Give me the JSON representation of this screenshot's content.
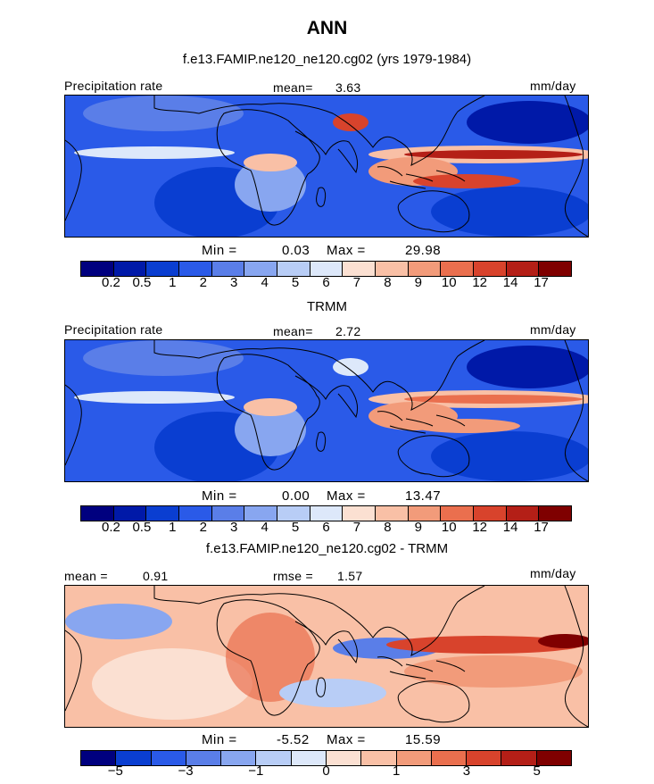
{
  "header": {
    "title": "ANN",
    "subtitle": "f.e13.FAMIP.ne120_ne120.cg02 (yrs 1979-1984)"
  },
  "colors": {
    "abs_scale": [
      "#00007f",
      "#0019a8",
      "#0a3ed1",
      "#2a5ae8",
      "#5a7ee8",
      "#88a6f0",
      "#b8cdf6",
      "#dde8fa",
      "#fbe0d2",
      "#f9c0a6",
      "#f29b7a",
      "#ea6f4e",
      "#d8432c",
      "#b41f17",
      "#7f0000"
    ],
    "diff_scale": [
      "#00007f",
      "#0a3ed1",
      "#2a5ae8",
      "#5a7ee8",
      "#88a6f0",
      "#b8cdf6",
      "#dde8fa",
      "#fbe0d2",
      "#f9c0a6",
      "#f29b7a",
      "#ea6f4e",
      "#d8432c",
      "#b41f17",
      "#7f0000"
    ]
  },
  "chart_data": [
    {
      "type": "heatmap",
      "title": "f.e13.FAMIP.ne120_ne120.cg02 (yrs 1979-1984)",
      "variable": "Precipitation rate",
      "units": "mm/day",
      "mean_label": "mean=",
      "mean": "3.63",
      "min_label": "Min =",
      "min": "0.03",
      "max_label": "Max =",
      "max": "29.98",
      "levels": [
        "0.2",
        "0.5",
        "1",
        "2",
        "3",
        "4",
        "5",
        "6",
        "7",
        "8",
        "9",
        "10",
        "12",
        "14",
        "17"
      ]
    },
    {
      "type": "heatmap",
      "title": "TRMM",
      "variable": "Precipitation rate",
      "units": "mm/day",
      "mean_label": "mean=",
      "mean": "2.72",
      "min_label": "Min =",
      "min": "0.00",
      "max_label": "Max =",
      "max": "13.47",
      "levels": [
        "0.2",
        "0.5",
        "1",
        "2",
        "3",
        "4",
        "5",
        "6",
        "7",
        "8",
        "9",
        "10",
        "12",
        "14",
        "17"
      ]
    },
    {
      "type": "heatmap",
      "title": "f.e13.FAMIP.ne120_ne120.cg02 - TRMM",
      "units": "mm/day",
      "mean_label": "mean =",
      "mean": "0.91",
      "rmse_label": "rmse =",
      "rmse": "1.57",
      "min_label": "Min =",
      "min": "-5.52",
      "max_label": "Max =",
      "max": "15.59",
      "levels": [
        "−5",
        "−3",
        "−1",
        "0",
        "1",
        "3",
        "5"
      ]
    }
  ]
}
